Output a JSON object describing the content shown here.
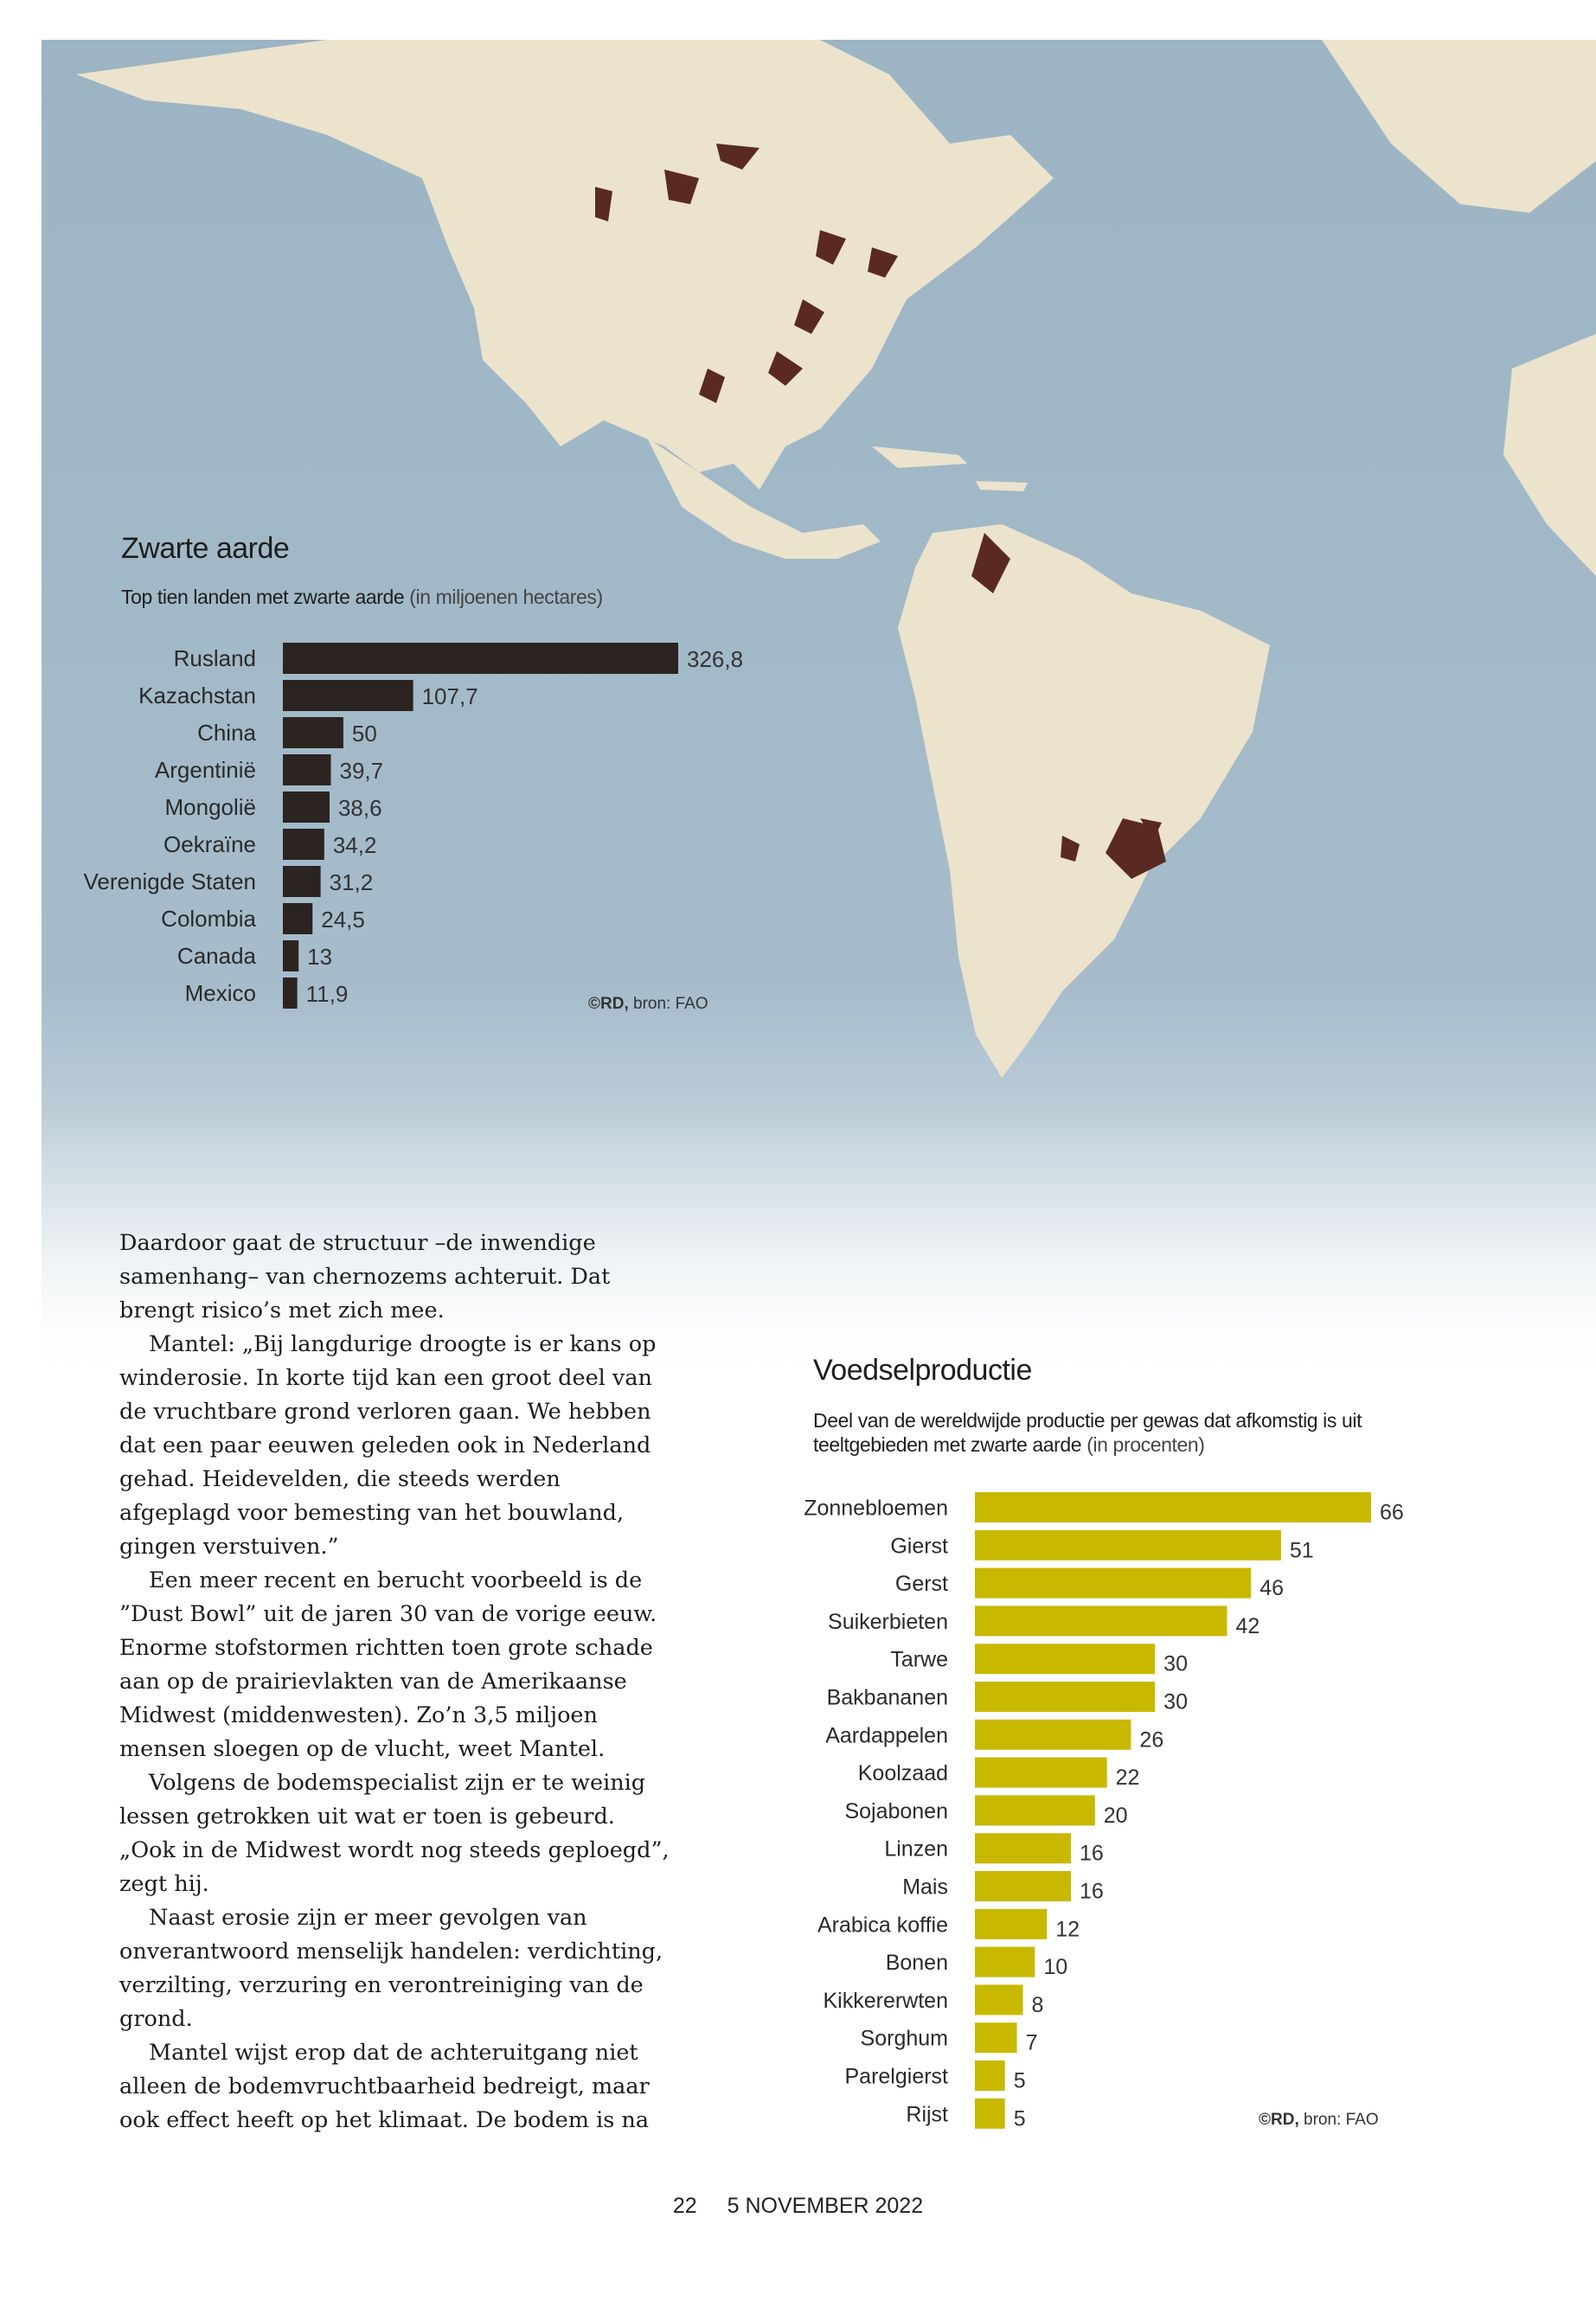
{
  "chart_data": [
    {
      "type": "bar",
      "orientation": "horizontal",
      "title": "Zwarte aarde",
      "subtitle": "Top tien landen met zwarte aarde",
      "unit_note": "(in miljoenen hectares)",
      "categories": [
        "Rusland",
        "Kazachstan",
        "China",
        "Argentinië",
        "Mongolië",
        "Oekraïne",
        "Verenigde Staten",
        "Colombia",
        "Canada",
        "Mexico"
      ],
      "values": [
        326.8,
        107.7,
        50,
        39.7,
        38.6,
        34.2,
        31.2,
        24.5,
        13,
        11.9
      ],
      "value_labels": [
        "326,8",
        "107,7",
        "50",
        "39,7",
        "38,6",
        "34,2",
        "31,2",
        "24,5",
        "13",
        "11,9"
      ],
      "bar_color": "#2b2421",
      "credit_bold": "©RD,",
      "credit_rest": " bron: FAO"
    },
    {
      "type": "bar",
      "orientation": "horizontal",
      "title": "Voedselproductie",
      "subtitle": "Deel van de wereldwijde productie per gewas dat afkomstig is uit teeltgebieden met zwarte aarde",
      "unit_note": "(in procenten)",
      "categories": [
        "Zonnebloemen",
        "Gierst",
        "Gerst",
        "Suikerbieten",
        "Tarwe",
        "Bakbananen",
        "Aardappelen",
        "Koolzaad",
        "Sojabonen",
        "Linzen",
        "Mais",
        "Arabica koffie",
        "Bonen",
        "Kikkererwten",
        "Sorghum",
        "Parelgierst",
        "Rijst"
      ],
      "values": [
        66,
        51,
        46,
        42,
        30,
        30,
        26,
        22,
        20,
        16,
        16,
        12,
        10,
        8,
        7,
        5,
        5
      ],
      "value_labels": [
        "66",
        "51",
        "46",
        "42",
        "30",
        "30",
        "26",
        "22",
        "20",
        "16",
        "16",
        "12",
        "10",
        "8",
        "7",
        "5",
        "5"
      ],
      "bar_color": "#c9b800",
      "credit_bold": "©RD,",
      "credit_rest": " bron: FAO"
    }
  ],
  "article": {
    "paragraphs": [
      "Daardoor gaat de structuur –de inwendige samenhang– van chernozems achteruit. Dat brengt risico’s met zich mee.",
      "Mantel: „Bij langdurige droogte is er kans op winderosie. In korte tijd kan een groot deel van de vruchtbare grond verloren gaan. We hebben dat een paar eeuwen geleden ook in Nederland gehad. Heidevelden, die steeds werden afgeplagd voor bemesting van het bouwland, gingen verstuiven.”",
      "Een meer recent en berucht voorbeeld is de ”Dust Bowl” uit de jaren 30 van de vorige eeuw. Enorme stofstormen richtten toen grote schade aan op de prairievlakten van de Amerikaanse Midwest (middenwesten). Zo’n 3,5 miljoen mensen sloegen op de vlucht, weet Mantel.",
      "Volgens de bodemspecialist zijn er te weinig lessen getrokken uit wat er toen is gebeurd. „Ook in de Midwest wordt nog steeds geploegd”, zegt hij.",
      "Naast erosie zijn er meer gevolgen van onverantwoord menselijk handelen: verdichting, verzilting, verzuring en verontreiniging van de grond.",
      "Mantel wijst erop dat de achteruitgang niet alleen de bodemvruchtbaarheid bedreigt, maar ook effect heeft op het klimaat. De bodem is na"
    ]
  },
  "footer": {
    "page_number": "22",
    "date": "5 NOVEMBER 2022"
  },
  "map": {
    "ocean_color": "#9fb6c4",
    "land_color": "#ede4cf",
    "black_soil_color": "#5a2a22"
  }
}
